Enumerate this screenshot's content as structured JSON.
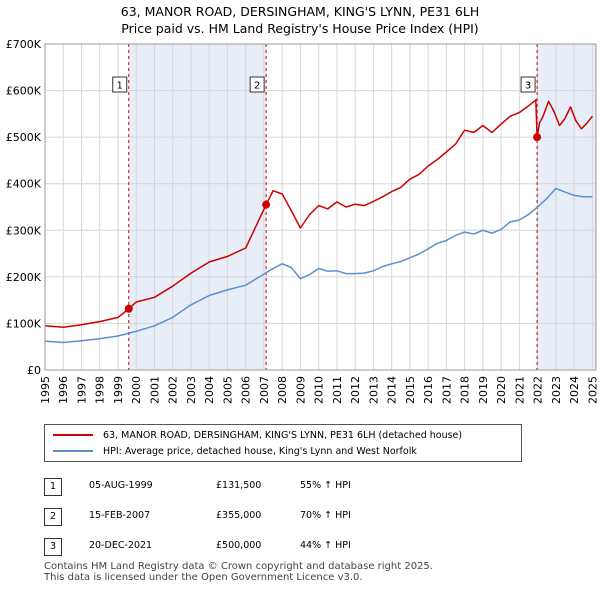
{
  "title_line1": "63, MANOR ROAD, DERSINGHAM, KING'S LYNN, PE31 6LH",
  "title_line2": "Price paid vs. HM Land Registry's House Price Index (HPI)",
  "colors": {
    "property": "#cc0000",
    "hpi": "#5b8fd1",
    "shade": "#e8eef8",
    "marker_line": "#cc0000"
  },
  "chart_data": {
    "type": "line",
    "title": "63, MANOR ROAD, DERSINGHAM, KING'S LYNN, PE31 6LH — Price paid vs. HM Land Registry's House Price Index (HPI)",
    "xlim": [
      1995.0,
      2025.2
    ],
    "ylim": [
      0,
      700000
    ],
    "x_ticks": [
      1995,
      1996,
      1997,
      1998,
      1999,
      2000,
      2001,
      2002,
      2003,
      2004,
      2005,
      2006,
      2007,
      2008,
      2009,
      2010,
      2011,
      2012,
      2013,
      2014,
      2015,
      2016,
      2017,
      2018,
      2019,
      2020,
      2021,
      2022,
      2023,
      2024,
      2025
    ],
    "y_ticks": [
      {
        "value": 0,
        "label": "£0"
      },
      {
        "value": 100000,
        "label": "£100K"
      },
      {
        "value": 200000,
        "label": "£200K"
      },
      {
        "value": 300000,
        "label": "£300K"
      },
      {
        "value": 400000,
        "label": "£400K"
      },
      {
        "value": 500000,
        "label": "£500K"
      },
      {
        "value": 600000,
        "label": "£600K"
      },
      {
        "value": 700000,
        "label": "£700K"
      }
    ],
    "shaded_ranges": [
      [
        1999.59,
        2007.12
      ],
      [
        2021.97,
        2025.2
      ]
    ],
    "series": [
      {
        "name": "63, MANOR ROAD, DERSINGHAM, KING'S LYNN, PE31 6LH (detached house)",
        "color": "#cc0000",
        "x": [
          1995.0,
          1996.0,
          1997.0,
          1998.0,
          1999.0,
          1999.59,
          2000.0,
          2001.0,
          2002.0,
          2003.0,
          2004.0,
          2005.0,
          2006.0,
          2007.12,
          2007.5,
          2008.0,
          2008.5,
          2009.0,
          2009.5,
          2010.0,
          2010.5,
          2011.0,
          2011.5,
          2012.0,
          2012.5,
          2013.0,
          2013.5,
          2014.0,
          2014.5,
          2015.0,
          2015.5,
          2016.0,
          2016.5,
          2017.0,
          2017.5,
          2018.0,
          2018.5,
          2019.0,
          2019.5,
          2020.0,
          2020.5,
          2021.0,
          2021.5,
          2021.9,
          2021.97,
          2022.1,
          2022.3,
          2022.6,
          2022.9,
          2023.2,
          2023.5,
          2023.8,
          2024.1,
          2024.4,
          2024.7,
          2025.0
        ],
        "values": [
          95000,
          92000,
          97000,
          104000,
          113000,
          131500,
          146000,
          156000,
          180000,
          208000,
          232000,
          244000,
          262000,
          355000,
          385000,
          378000,
          342000,
          305000,
          334000,
          353000,
          346000,
          361000,
          350000,
          356000,
          353000,
          362000,
          372000,
          383000,
          392000,
          410000,
          420000,
          438000,
          452000,
          468000,
          485000,
          515000,
          510000,
          525000,
          510000,
          528000,
          545000,
          553000,
          567000,
          580000,
          500000,
          530000,
          545000,
          577000,
          555000,
          525000,
          540000,
          565000,
          535000,
          518000,
          530000,
          545000
        ]
      },
      {
        "name": "HPI: Average price, detached house, King's Lynn and West Norfolk",
        "color": "#5b8fd1",
        "x": [
          1995.0,
          1996.0,
          1997.0,
          1998.0,
          1999.0,
          2000.0,
          2001.0,
          2002.0,
          2003.0,
          2004.0,
          2005.0,
          2006.0,
          2007.0,
          2007.5,
          2008.0,
          2008.5,
          2009.0,
          2009.5,
          2010.0,
          2010.5,
          2011.0,
          2011.5,
          2012.0,
          2012.5,
          2013.0,
          2013.5,
          2014.0,
          2014.5,
          2015.0,
          2015.5,
          2016.0,
          2016.5,
          2017.0,
          2017.5,
          2018.0,
          2018.5,
          2019.0,
          2019.5,
          2020.0,
          2020.5,
          2021.0,
          2021.5,
          2022.0,
          2022.5,
          2023.0,
          2023.5,
          2024.0,
          2024.5,
          2025.0
        ],
        "values": [
          62000,
          59000,
          63000,
          67000,
          73000,
          83000,
          95000,
          113000,
          140000,
          160000,
          172000,
          182000,
          206000,
          218000,
          228000,
          220000,
          196000,
          205000,
          218000,
          212000,
          213000,
          207000,
          207000,
          208000,
          213000,
          222000,
          228000,
          233000,
          241000,
          249000,
          260000,
          272000,
          278000,
          289000,
          296000,
          292000,
          300000,
          294000,
          302000,
          318000,
          322000,
          334000,
          350000,
          368000,
          390000,
          382000,
          375000,
          372000,
          372000
        ]
      }
    ],
    "sales": [
      {
        "label": "1",
        "x": 1999.59,
        "value": 131500,
        "date": "05-AUG-1999",
        "price": "£131,500",
        "hpi": "55% ↑ HPI"
      },
      {
        "label": "2",
        "x": 2007.12,
        "value": 355000,
        "date": "15-FEB-2007",
        "price": "£355,000",
        "hpi": "70% ↑ HPI"
      },
      {
        "label": "3",
        "x": 2021.97,
        "value": 500000,
        "date": "20-DEC-2021",
        "price": "£500,000",
        "hpi": "44% ↑ HPI"
      }
    ]
  },
  "legend": {
    "property_label": "63, MANOR ROAD, DERSINGHAM, KING'S LYNN, PE31 6LH (detached house)",
    "hpi_label": "HPI: Average price, detached house, King's Lynn and West Norfolk"
  },
  "footer_line1": "Contains HM Land Registry data © Crown copyright and database right 2025.",
  "footer_line2": "This data is licensed under the Open Government Licence v3.0."
}
